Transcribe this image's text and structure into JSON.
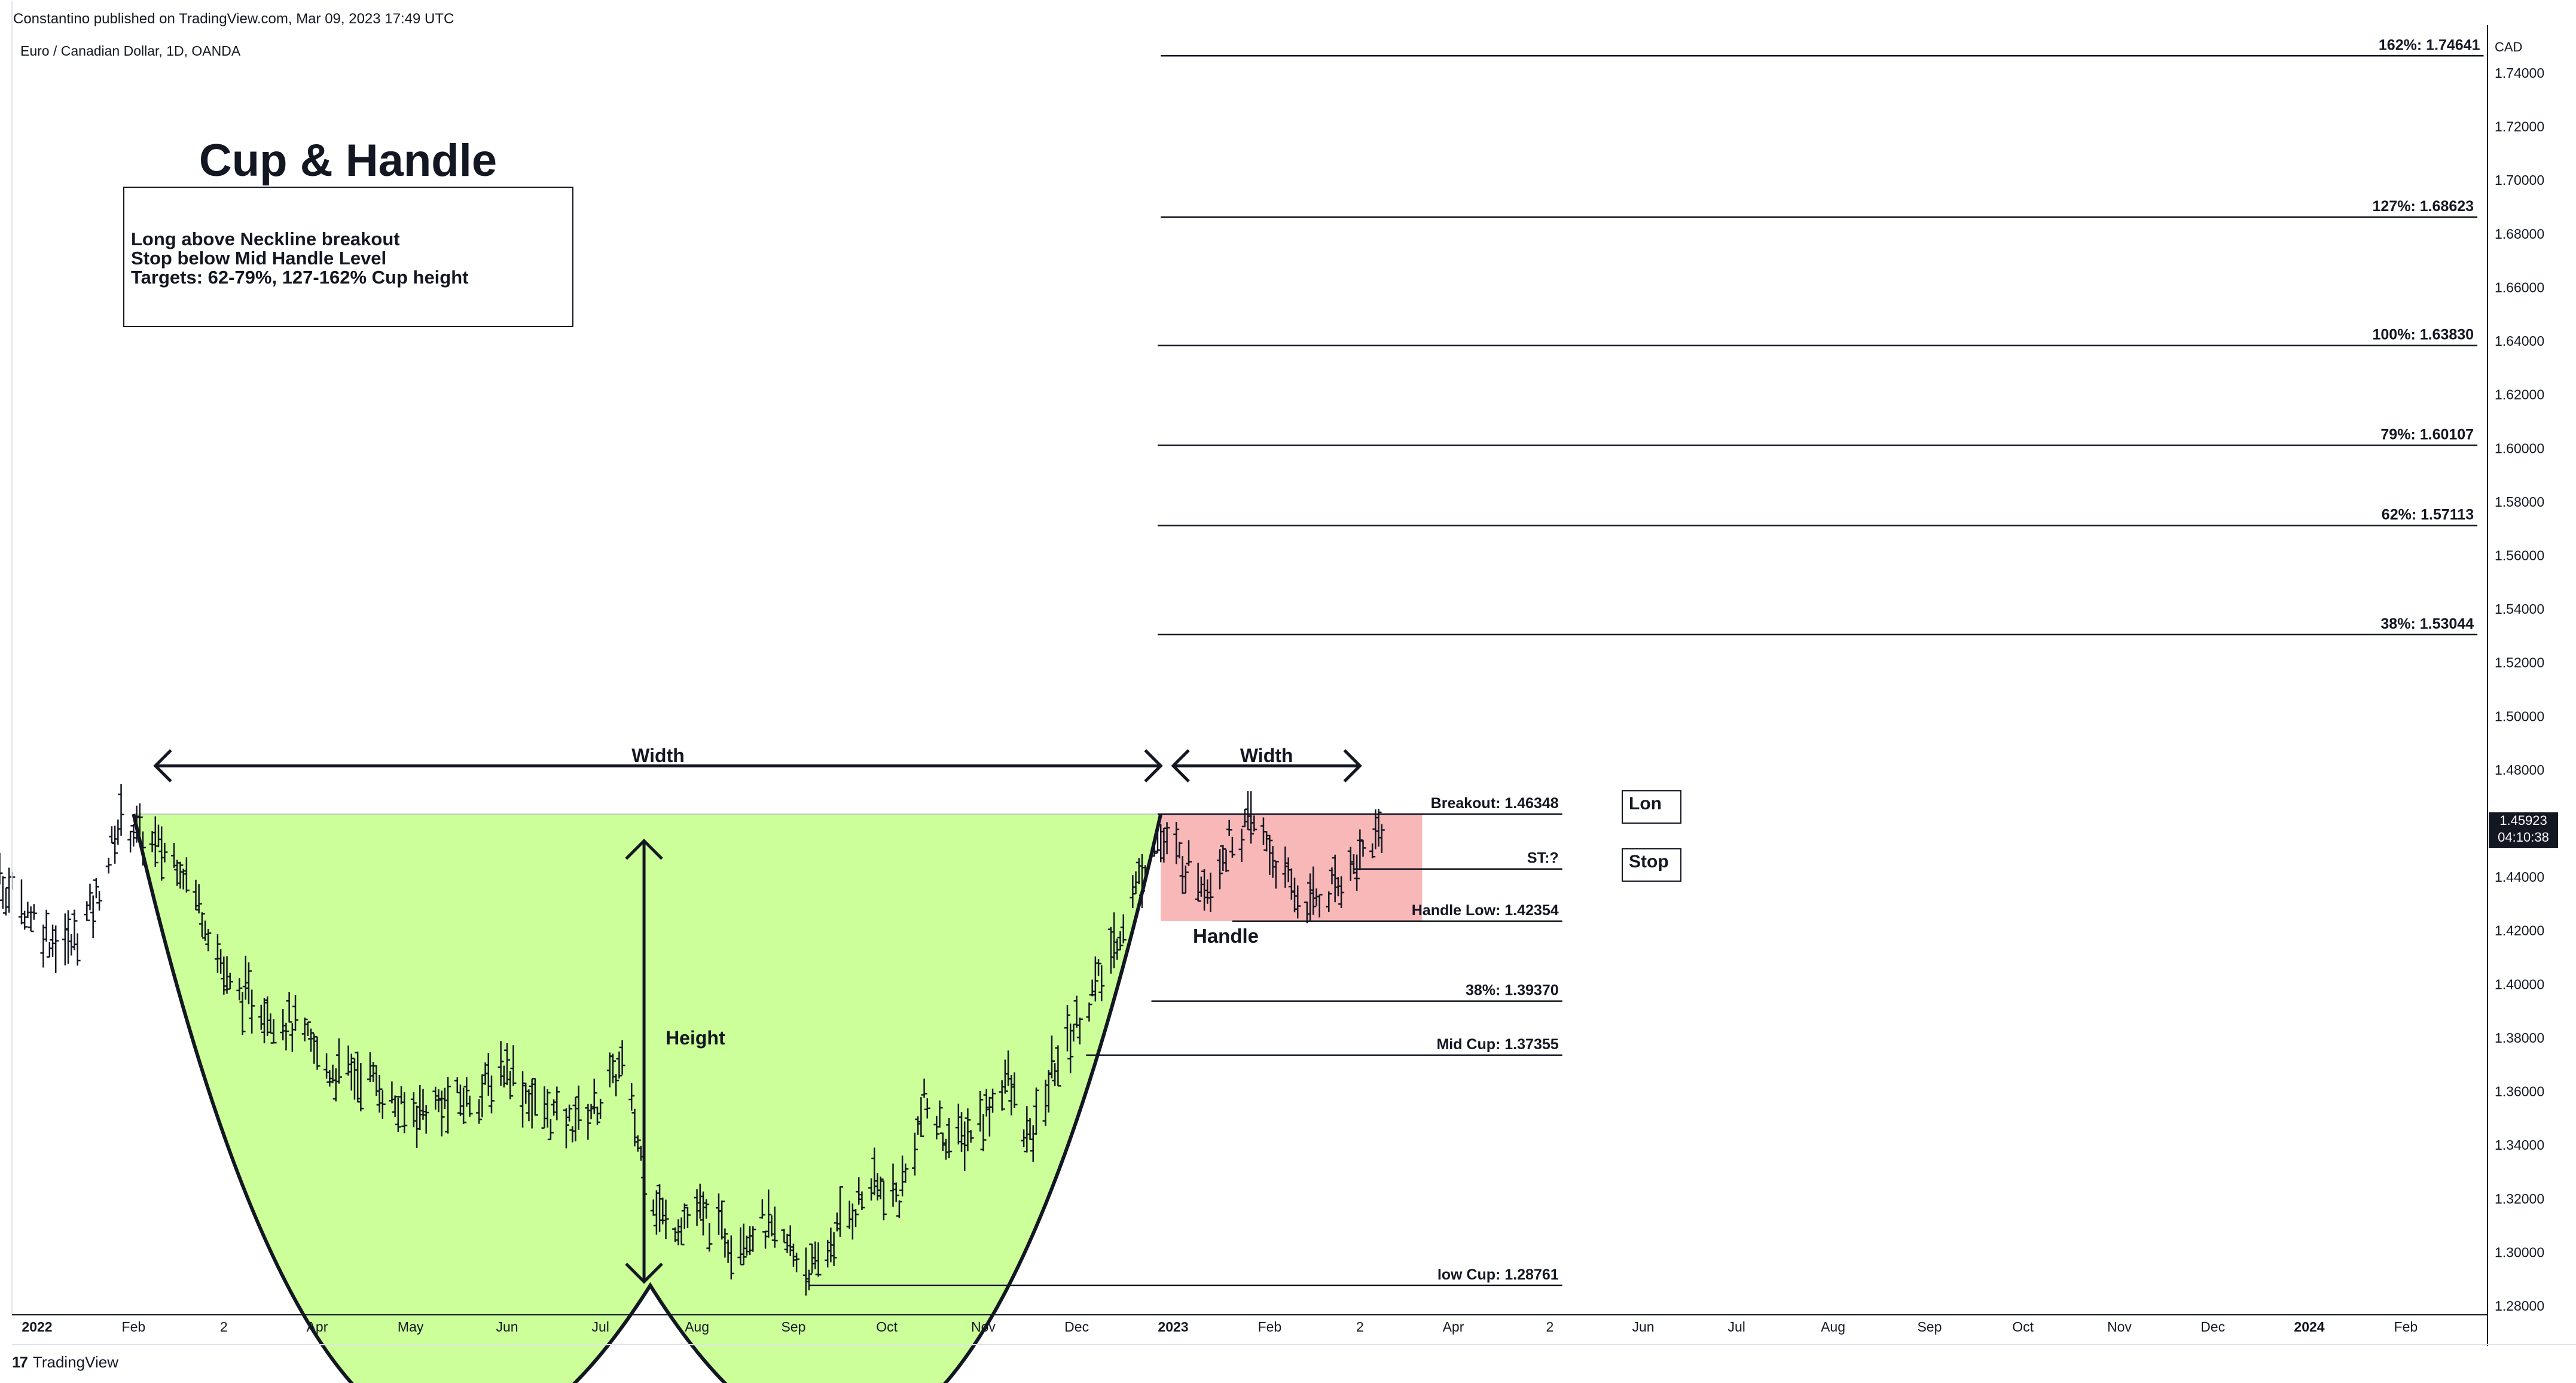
{
  "header": {
    "published": "Constantino published on TradingView.com, Mar 09, 2023 17:49 UTC",
    "symbol": "Euro / Canadian Dollar, 1D, OANDA"
  },
  "footer": {
    "logo_mark": "17",
    "logo_text": "TradingView"
  },
  "price_badge": {
    "price": "1.45923",
    "countdown": "04:10:38"
  },
  "chart_data": {
    "type": "bar",
    "subtype": "ohlc-price-chart-with-annotations",
    "currency_label": "CAD",
    "y_range": [
      1.275,
      1.765
    ],
    "y_ticks": [
      "1.74000",
      "1.72000",
      "1.70000",
      "1.68000",
      "1.66000",
      "1.64000",
      "1.62000",
      "1.60000",
      "1.58000",
      "1.56000",
      "1.54000",
      "1.52000",
      "1.50000",
      "1.48000",
      "1.46000",
      "1.44000",
      "1.42000",
      "1.40000",
      "1.38000",
      "1.36000",
      "1.34000",
      "1.32000",
      "1.30000",
      "1.28000"
    ],
    "x_ticks": [
      {
        "label": "2022",
        "bold": true,
        "date": "2022-01-01"
      },
      {
        "label": "Feb",
        "date": "2022-02-01"
      },
      {
        "label": "2",
        "date": "2022-03-02"
      },
      {
        "label": "Apr",
        "date": "2022-04-01"
      },
      {
        "label": "May",
        "date": "2022-05-01"
      },
      {
        "label": "Jun",
        "date": "2022-06-01"
      },
      {
        "label": "Jul",
        "date": "2022-07-01"
      },
      {
        "label": "Aug",
        "date": "2022-08-01"
      },
      {
        "label": "Sep",
        "date": "2022-09-01"
      },
      {
        "label": "Oct",
        "date": "2022-10-01"
      },
      {
        "label": "Nov",
        "date": "2022-11-01"
      },
      {
        "label": "Dec",
        "date": "2022-12-01"
      },
      {
        "label": "2023",
        "bold": true,
        "date": "2023-01-01"
      },
      {
        "label": "Feb",
        "date": "2023-02-01"
      },
      {
        "label": "2",
        "date": "2023-03-02"
      },
      {
        "label": "Apr",
        "date": "2023-04-01"
      },
      {
        "label": "2",
        "date": "2023-05-02"
      },
      {
        "label": "Jun",
        "date": "2023-06-01"
      },
      {
        "label": "Jul",
        "date": "2023-07-01"
      },
      {
        "label": "Aug",
        "date": "2023-08-01"
      },
      {
        "label": "Sep",
        "date": "2023-09-01"
      },
      {
        "label": "Oct",
        "date": "2023-10-01"
      },
      {
        "label": "Nov",
        "date": "2023-11-01"
      },
      {
        "label": "Dec",
        "date": "2023-12-01"
      },
      {
        "label": "2024",
        "bold": true,
        "date": "2024-01-01"
      },
      {
        "label": "Feb",
        "date": "2024-02-01"
      }
    ],
    "price_path": [
      [
        "2021-12-01",
        1.455
      ],
      [
        "2021-12-15",
        1.445
      ],
      [
        "2021-12-29",
        1.428
      ],
      [
        "2022-01-05",
        1.418
      ],
      [
        "2022-01-12",
        1.415
      ],
      [
        "2022-01-20",
        1.432
      ],
      [
        "2022-01-28",
        1.462
      ],
      [
        "2022-02-07",
        1.452
      ],
      [
        "2022-02-16",
        1.446
      ],
      [
        "2022-02-24",
        1.425
      ],
      [
        "2022-03-04",
        1.398
      ],
      [
        "2022-03-14",
        1.392
      ],
      [
        "2022-03-24",
        1.385
      ],
      [
        "2022-04-05",
        1.368
      ],
      [
        "2022-04-18",
        1.366
      ],
      [
        "2022-04-28",
        1.352
      ],
      [
        "2022-05-10",
        1.355
      ],
      [
        "2022-05-22",
        1.358
      ],
      [
        "2022-06-01",
        1.37
      ],
      [
        "2022-06-10",
        1.355
      ],
      [
        "2022-06-20",
        1.348
      ],
      [
        "2022-06-30",
        1.355
      ],
      [
        "2022-07-08",
        1.37
      ],
      [
        "2022-07-15",
        1.33
      ],
      [
        "2022-07-22",
        1.31
      ],
      [
        "2022-08-01",
        1.315
      ],
      [
        "2022-08-12",
        1.305
      ],
      [
        "2022-08-22",
        1.31
      ],
      [
        "2022-09-01",
        1.3
      ],
      [
        "2022-09-08",
        1.292
      ],
      [
        "2022-09-16",
        1.31
      ],
      [
        "2022-09-26",
        1.325
      ],
      [
        "2022-10-05",
        1.32
      ],
      [
        "2022-10-13",
        1.355
      ],
      [
        "2022-10-22",
        1.34
      ],
      [
        "2022-11-01",
        1.35
      ],
      [
        "2022-11-08",
        1.366
      ],
      [
        "2022-11-16",
        1.34
      ],
      [
        "2022-11-24",
        1.37
      ],
      [
        "2022-12-02",
        1.388
      ],
      [
        "2022-12-10",
        1.405
      ],
      [
        "2022-12-18",
        1.43
      ],
      [
        "2022-12-26",
        1.455
      ],
      [
        "2023-01-05",
        1.445
      ],
      [
        "2023-01-12",
        1.438
      ],
      [
        "2023-01-20",
        1.455
      ],
      [
        "2023-01-28",
        1.46
      ],
      [
        "2023-02-05",
        1.44
      ],
      [
        "2023-02-12",
        1.43
      ],
      [
        "2023-02-20",
        1.435
      ],
      [
        "2023-02-28",
        1.445
      ],
      [
        "2023-03-09",
        1.459
      ]
    ],
    "cup": {
      "start": "2022-02-01",
      "bottom": "2022-07-17",
      "end": "2022-12-28",
      "rim": 1.46348,
      "low": 1.28761,
      "fill": "#ccff99"
    },
    "handle_zone": {
      "from": "2022-12-28",
      "to": "2023-03-22",
      "top": 1.46348,
      "bottom": 1.42354,
      "fill": "#f9b8b8"
    },
    "width_arrows": [
      {
        "label": "Width",
        "from": "2022-02-08",
        "to": "2022-12-28",
        "price": 1.4815
      },
      {
        "label": "Width",
        "from": "2023-01-01",
        "to": "2023-03-02",
        "price": 1.4815
      }
    ],
    "height_arrow": {
      "label": "Height",
      "date": "2022-07-15",
      "from": 1.4535,
      "to": 1.289
    },
    "levels": [
      {
        "label": "162%: 1.74641",
        "value": 1.74641,
        "from": "2022-12-28",
        "to": "2024-02-26"
      },
      {
        "label": "127%: 1.68623",
        "value": 1.68623,
        "from": "2022-12-28",
        "to": "2024-02-24"
      },
      {
        "label": "100%: 1.63830",
        "value": 1.6383,
        "from": "2022-12-27",
        "to": "2024-02-24"
      },
      {
        "label": "79%: 1.60107",
        "value": 1.60107,
        "from": "2022-12-27",
        "to": "2024-02-24"
      },
      {
        "label": "62%: 1.57113",
        "value": 1.57113,
        "from": "2022-12-27",
        "to": "2024-02-24"
      },
      {
        "label": "38%: 1.53044",
        "value": 1.53044,
        "from": "2022-12-27",
        "to": "2024-02-24"
      },
      {
        "label": "Breakout: 1.46348",
        "value": 1.46348,
        "from": "2022-12-27",
        "to": "2023-05-06"
      },
      {
        "label": "ST:?",
        "value": 1.443,
        "from": "2023-02-28",
        "to": "2023-05-06"
      },
      {
        "label": "Handle Low: 1.42354",
        "value": 1.42354,
        "from": "2023-01-20",
        "to": "2023-05-06"
      },
      {
        "label": "38%: 1.39370",
        "value": 1.3937,
        "from": "2022-12-25",
        "to": "2023-05-06"
      },
      {
        "label": "Mid Cup: 1.37355",
        "value": 1.37355,
        "from": "2022-12-04",
        "to": "2023-05-06"
      },
      {
        "label": "low Cup: 1.28761",
        "value": 1.28761,
        "from": "2022-09-06",
        "to": "2023-05-06"
      }
    ],
    "labels": {
      "title": "Cup & Handle",
      "note_lines": [
        "Long above Neckline breakout",
        "Stop below Mid Handle Level",
        "Targets: 62-79%, 127-162% Cup height"
      ],
      "handle": "Handle",
      "long_tag": "Lon",
      "stop_tag": "Stop"
    },
    "grid": false,
    "colors": {
      "bars": "#131722",
      "cup_fill": "#ccff99",
      "handle_fill": "#f9b8b8",
      "badge": "#131722"
    }
  }
}
